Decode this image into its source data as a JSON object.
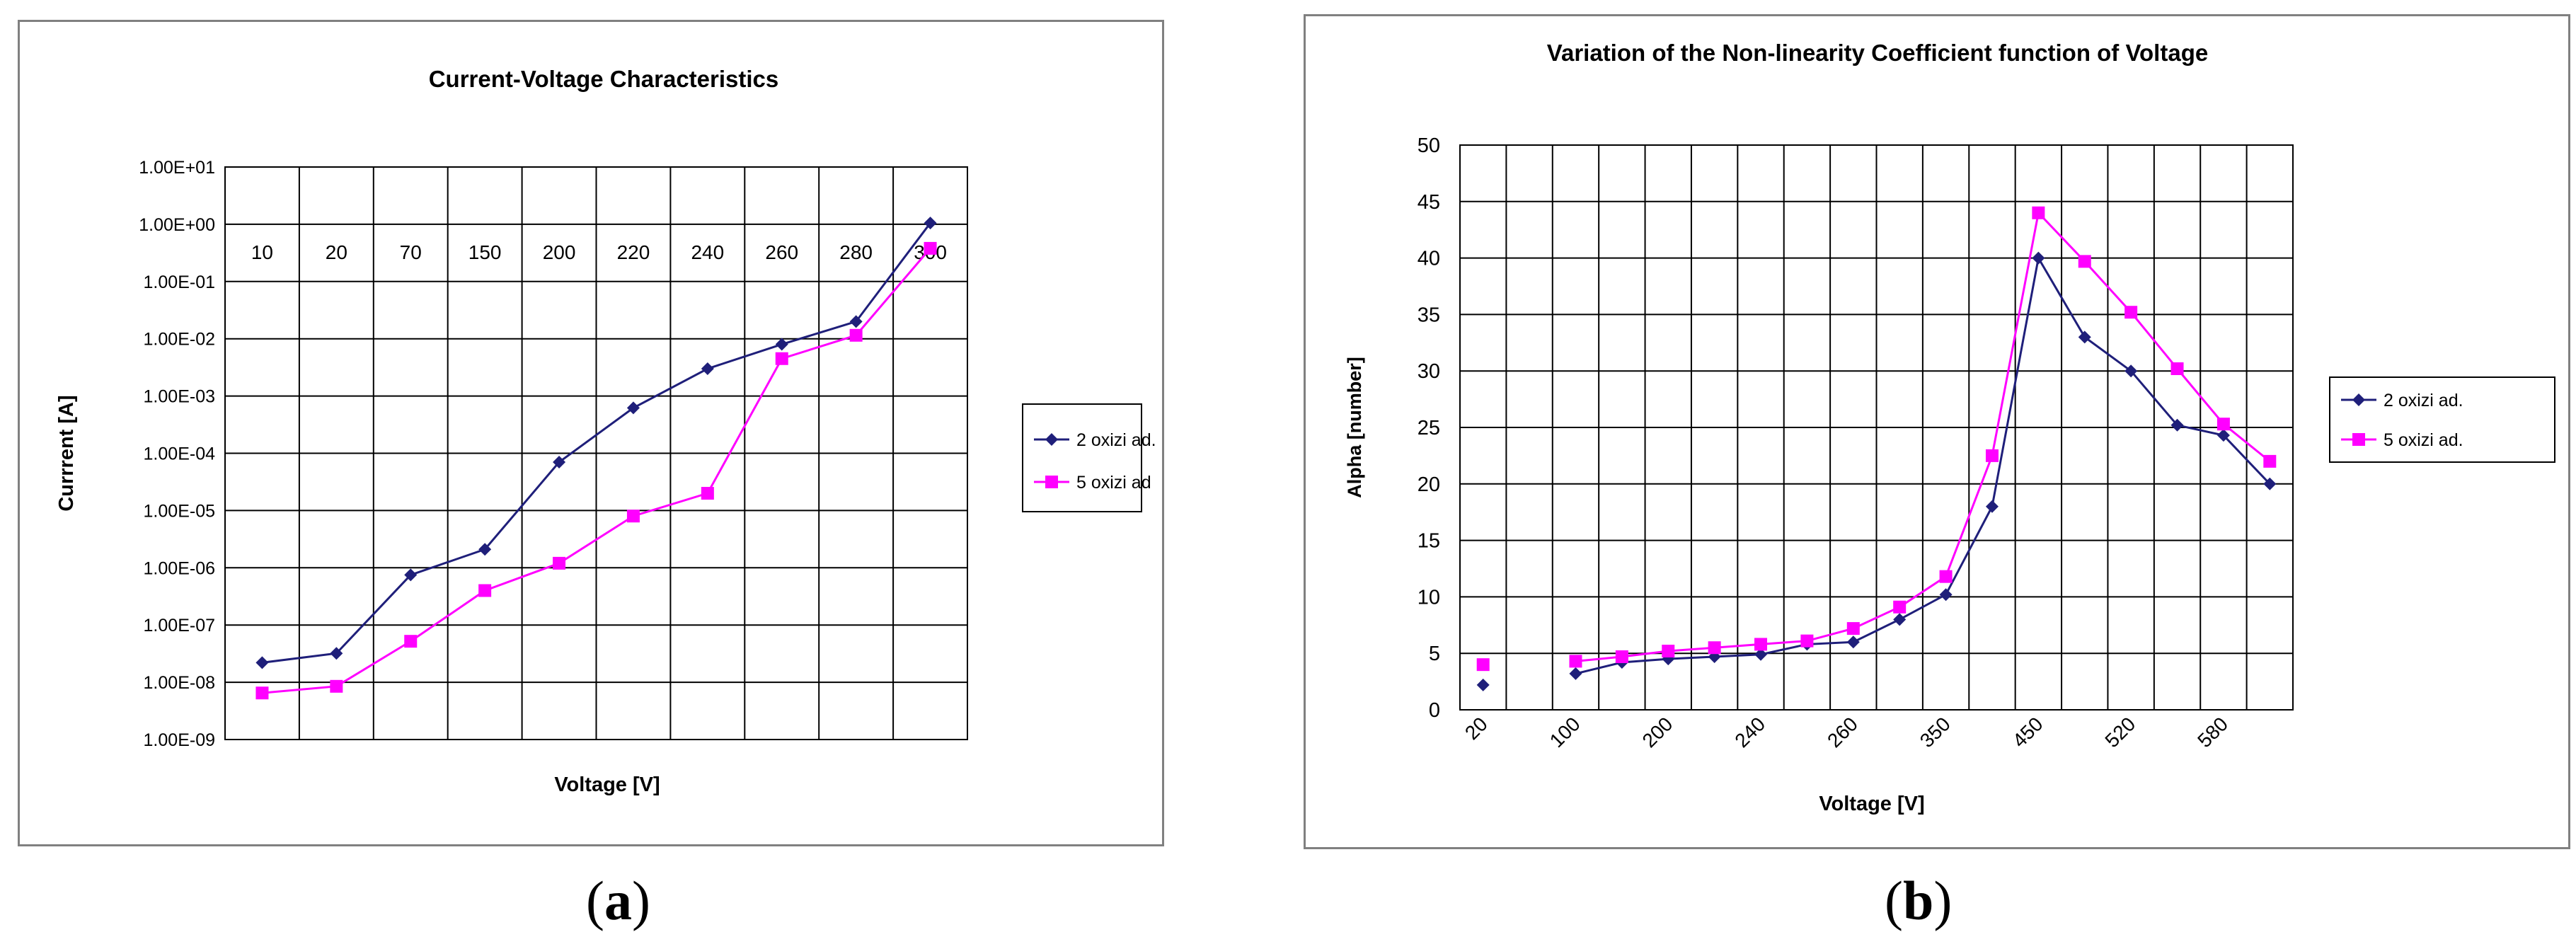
{
  "chart_data": [
    {
      "type": "line",
      "title": "Current-Voltage Characteristics",
      "xlabel": "Voltage [V]",
      "ylabel": "Currrent [A]",
      "y_scale": "log",
      "categories": [
        "10",
        "20",
        "70",
        "150",
        "200",
        "220",
        "240",
        "260",
        "280",
        "300"
      ],
      "y_tick_labels": [
        "1.00E-09",
        "1.00E-08",
        "1.00E-07",
        "1.00E-06",
        "1.00E-05",
        "1.00E-04",
        "1.00E-03",
        "1.00E-02",
        "1.00E-01",
        "1.00E+00",
        "1.00E+01"
      ],
      "ylim": [
        1e-09,
        10
      ],
      "grid": true,
      "legend_position": "right",
      "series": [
        {
          "name": "2 oxizi ad.",
          "color": "#1F1F7A",
          "marker": "diamond",
          "values": [
            2.2e-08,
            3.2e-08,
            7.5e-07,
            2.1e-06,
            7e-05,
            0.00062,
            0.003,
            0.008,
            0.02,
            1.05
          ]
        },
        {
          "name": "5 oxizi ad",
          "color": "#FF00FF",
          "marker": "square",
          "values": [
            6.5e-09,
            8.5e-09,
            5.2e-08,
            4e-07,
            1.2e-06,
            8e-06,
            2e-05,
            0.0045,
            0.0115,
            0.38
          ]
        }
      ]
    },
    {
      "type": "line",
      "title": "Variation of the Non-linearity Coefficient function of Voltage",
      "xlabel": "Voltage [V]",
      "ylabel": "Alpha [number]",
      "x_tick_labels": [
        "20",
        "",
        "100",
        "",
        "200",
        "",
        "240",
        "",
        "260",
        "",
        "350",
        "",
        "450",
        "",
        "520",
        "",
        "580",
        ""
      ],
      "ylim": [
        0,
        50
      ],
      "y_ticks": [
        0,
        5,
        10,
        15,
        20,
        25,
        30,
        35,
        40,
        45,
        50
      ],
      "grid": true,
      "legend_position": "right",
      "series": [
        {
          "name": "2 oxizi ad.",
          "color": "#1F1F7A",
          "marker": "diamond",
          "values": [
            2.2,
            null,
            3.2,
            4.2,
            4.5,
            4.7,
            4.9,
            5.8,
            6.0,
            8.0,
            10.2,
            18.0,
            40.0,
            33.0,
            30.0,
            25.2,
            24.3,
            20.0
          ]
        },
        {
          "name": "5 oxizi ad.",
          "color": "#FF00FF",
          "marker": "square",
          "values": [
            4.0,
            null,
            4.3,
            4.7,
            5.2,
            5.5,
            5.8,
            6.1,
            7.2,
            9.1,
            11.8,
            22.5,
            44.0,
            39.7,
            35.2,
            30.2,
            25.3,
            22.0
          ]
        }
      ]
    }
  ],
  "captions": {
    "a": "a",
    "b": "b"
  }
}
